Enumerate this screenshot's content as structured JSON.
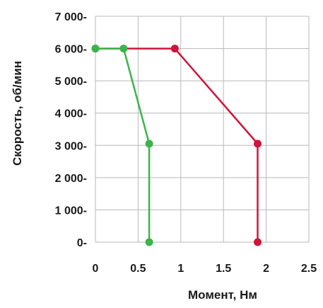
{
  "chart_data": {
    "type": "line",
    "title": "",
    "xlabel": "Момент, Нм",
    "ylabel": "Скорость, об/мин",
    "xlim": [
      0,
      2.5
    ],
    "ylim": [
      0,
      7000
    ],
    "x_ticks": [
      0,
      0.5,
      1,
      1.5,
      2,
      2.5
    ],
    "x_tick_labels": [
      "0",
      "0.5",
      "1",
      "1.5",
      "2",
      "2.5"
    ],
    "y_ticks": [
      0,
      1000,
      2000,
      3000,
      4000,
      5000,
      6000,
      7000
    ],
    "y_tick_labels": [
      "0-",
      "1 000-",
      "2 000-",
      "3 000-",
      "4 000-",
      "5 000-",
      "6 000-",
      "7 000-"
    ],
    "grid": true,
    "legend": "none",
    "series": [
      {
        "color": "#d0143c",
        "points": [
          [
            0,
            6000
          ],
          [
            0.93,
            6000
          ],
          [
            1.9,
            3050
          ],
          [
            1.9,
            0
          ]
        ]
      },
      {
        "color": "#3cb44b",
        "points": [
          [
            0,
            6000
          ],
          [
            0.33,
            6000
          ],
          [
            0.63,
            3050
          ],
          [
            0.63,
            0
          ]
        ]
      }
    ]
  }
}
